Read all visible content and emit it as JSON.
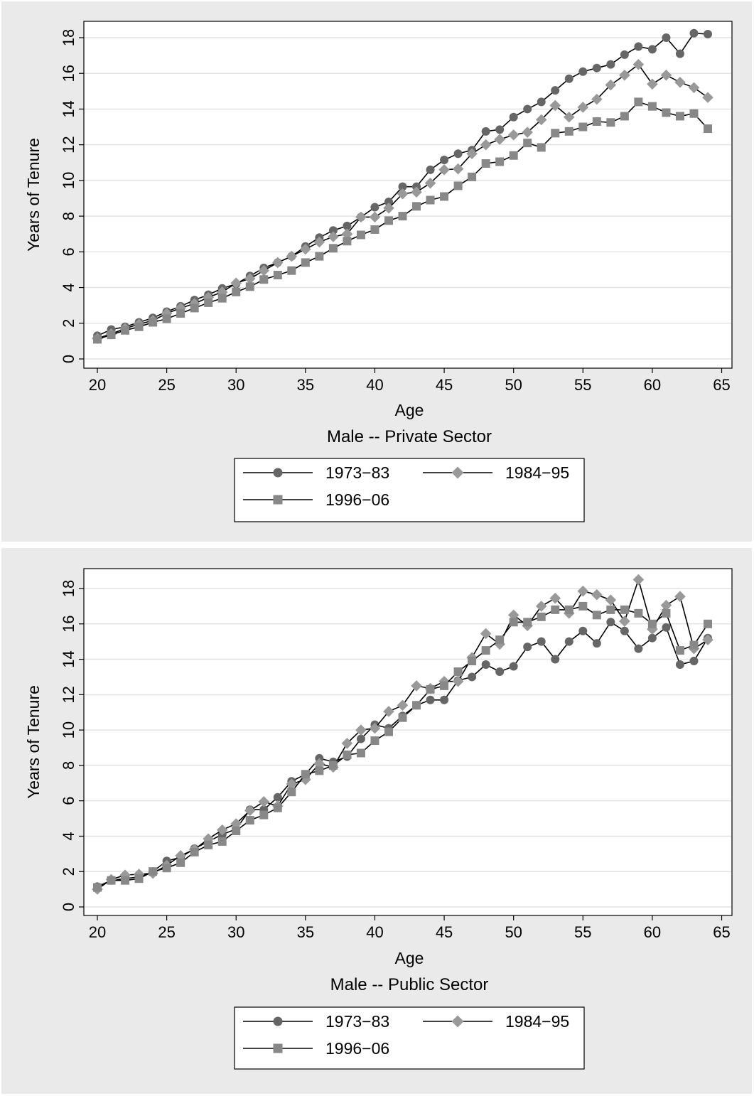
{
  "chart_data": [
    {
      "type": "line",
      "title": "Male -- Private Sector",
      "xlabel": "Age",
      "ylabel": "Years of Tenure",
      "xlim": [
        20,
        64
      ],
      "ylim": [
        0,
        18
      ],
      "x_ticks": [
        20,
        25,
        30,
        35,
        40,
        45,
        50,
        55,
        60,
        65
      ],
      "y_ticks": [
        0,
        2,
        4,
        6,
        8,
        10,
        12,
        14,
        16,
        18
      ],
      "grid": "horizontal",
      "legend_position": "bottom",
      "x": [
        20,
        21,
        22,
        23,
        24,
        25,
        26,
        27,
        28,
        29,
        30,
        31,
        32,
        33,
        34,
        35,
        36,
        37,
        38,
        39,
        40,
        41,
        42,
        43,
        44,
        45,
        46,
        47,
        48,
        49,
        50,
        51,
        52,
        53,
        54,
        55,
        56,
        57,
        58,
        59,
        60,
        61,
        62,
        63,
        64
      ],
      "series": [
        {
          "name": "1973−83",
          "marker": "circle",
          "color": "#666666",
          "values": [
            1.3,
            1.65,
            1.8,
            2.05,
            2.3,
            2.65,
            2.95,
            3.3,
            3.6,
            3.95,
            4.2,
            4.65,
            5.1,
            5.4,
            5.75,
            6.3,
            6.8,
            7.2,
            7.45,
            7.95,
            8.5,
            8.8,
            9.65,
            9.65,
            10.6,
            11.15,
            11.5,
            11.7,
            12.75,
            12.85,
            13.55,
            14.0,
            14.4,
            15.05,
            15.7,
            16.1,
            16.3,
            16.5,
            17.05,
            17.5,
            17.35,
            18.0,
            17.1,
            18.25,
            18.2
          ]
        },
        {
          "name": "1984−95",
          "marker": "diamond",
          "color": "#999999",
          "values": [
            1.15,
            1.4,
            1.7,
            1.95,
            2.15,
            2.55,
            2.85,
            3.1,
            3.45,
            3.75,
            4.25,
            4.5,
            4.95,
            5.4,
            5.75,
            6.15,
            6.55,
            6.85,
            7.0,
            7.95,
            7.95,
            8.45,
            9.25,
            9.35,
            9.85,
            10.6,
            10.65,
            11.5,
            12.0,
            12.3,
            12.55,
            12.7,
            13.4,
            14.2,
            13.55,
            14.1,
            14.55,
            15.35,
            15.9,
            16.5,
            15.4,
            15.9,
            15.5,
            15.2,
            14.65
          ]
        },
        {
          "name": "1996−06",
          "marker": "square",
          "color": "#888888",
          "values": [
            1.1,
            1.35,
            1.6,
            1.8,
            2.05,
            2.25,
            2.55,
            2.85,
            3.15,
            3.4,
            3.75,
            4.05,
            4.45,
            4.7,
            4.95,
            5.4,
            5.75,
            6.2,
            6.6,
            6.95,
            7.25,
            7.75,
            8.0,
            8.55,
            8.9,
            9.1,
            9.7,
            10.2,
            10.95,
            11.05,
            11.4,
            12.1,
            11.85,
            12.65,
            12.75,
            13.0,
            13.3,
            13.25,
            13.6,
            14.4,
            14.15,
            13.8,
            13.6,
            13.75,
            12.9
          ]
        }
      ]
    },
    {
      "type": "line",
      "title": "Male -- Public Sector",
      "xlabel": "Age",
      "ylabel": "Years of Tenure",
      "xlim": [
        20,
        64
      ],
      "ylim": [
        0,
        18
      ],
      "x_ticks": [
        20,
        25,
        30,
        35,
        40,
        45,
        50,
        55,
        60,
        65
      ],
      "y_ticks": [
        0,
        2,
        4,
        6,
        8,
        10,
        12,
        14,
        16,
        18
      ],
      "grid": "horizontal",
      "legend_position": "bottom",
      "x": [
        20,
        21,
        22,
        23,
        24,
        25,
        26,
        27,
        28,
        29,
        30,
        31,
        32,
        33,
        34,
        35,
        36,
        37,
        38,
        39,
        40,
        41,
        42,
        43,
        44,
        45,
        46,
        47,
        48,
        49,
        50,
        51,
        52,
        53,
        54,
        55,
        56,
        57,
        58,
        59,
        60,
        61,
        62,
        63,
        64
      ],
      "series": [
        {
          "name": "1973−83",
          "marker": "circle",
          "color": "#666666",
          "values": [
            1.15,
            1.5,
            1.6,
            1.7,
            2.0,
            2.6,
            2.8,
            3.3,
            3.7,
            4.1,
            4.4,
            5.5,
            5.5,
            6.2,
            7.1,
            7.5,
            8.4,
            8.2,
            8.5,
            9.5,
            10.3,
            10.1,
            10.8,
            11.4,
            11.7,
            11.7,
            12.8,
            13.0,
            13.7,
            13.3,
            13.6,
            14.7,
            15.0,
            14.0,
            15.0,
            15.6,
            14.9,
            16.1,
            15.6,
            14.6,
            15.2,
            15.8,
            13.7,
            13.9,
            15.2
          ]
        },
        {
          "name": "1984−95",
          "marker": "diamond",
          "color": "#999999",
          "values": [
            1.0,
            1.55,
            1.8,
            1.85,
            1.9,
            2.35,
            2.9,
            3.25,
            3.85,
            4.35,
            4.7,
            5.45,
            5.95,
            5.7,
            6.95,
            7.2,
            8.1,
            7.9,
            9.25,
            10.0,
            10.1,
            11.05,
            11.4,
            12.5,
            12.35,
            12.75,
            12.75,
            14.1,
            15.45,
            14.85,
            16.5,
            15.9,
            17.0,
            17.45,
            16.6,
            17.85,
            17.65,
            17.35,
            16.15,
            18.5,
            15.7,
            17.05,
            17.55,
            14.6,
            15.1
          ]
        },
        {
          "name": "1996−06",
          "marker": "square",
          "color": "#888888",
          "values": [
            1.1,
            1.5,
            1.5,
            1.6,
            2.0,
            2.2,
            2.5,
            3.1,
            3.5,
            3.7,
            4.3,
            4.9,
            5.2,
            5.6,
            6.5,
            7.5,
            7.7,
            8.0,
            8.6,
            8.7,
            9.4,
            9.9,
            10.7,
            11.4,
            12.3,
            12.5,
            13.3,
            13.9,
            14.5,
            15.1,
            16.1,
            16.1,
            16.4,
            16.8,
            16.8,
            17.0,
            16.5,
            16.8,
            16.8,
            16.6,
            16.0,
            16.6,
            14.5,
            14.8,
            16.0
          ]
        }
      ]
    }
  ]
}
